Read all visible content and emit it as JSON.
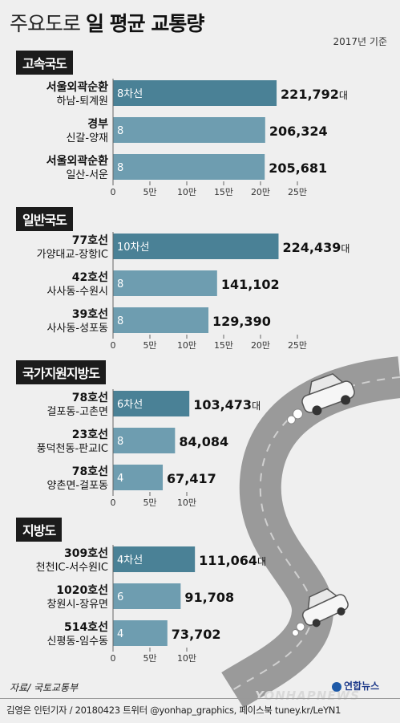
{
  "title": {
    "light": "주요도로",
    "bold": "일 평균 교통량"
  },
  "basis": "2017년 기준",
  "colors": {
    "first": "#4a8196",
    "rest": "#6e9db0",
    "axis": "#666666",
    "road": "#9a9a9a",
    "lane": "#ffffff"
  },
  "chart_data": [
    {
      "type": "bar",
      "orientation": "horizontal",
      "title": "고속국도",
      "categories": [
        [
          "서울외곽순환",
          "하남-퇴계원"
        ],
        [
          "경부",
          "신갈-양재"
        ],
        [
          "서울외곽순환",
          "일산-서운"
        ]
      ],
      "values": [
        221792,
        206324,
        205681
      ],
      "value_labels": [
        "221,792",
        "206,324",
        "205,681"
      ],
      "unit": "대",
      "lanes": [
        "8차선",
        "8",
        "8"
      ],
      "ticks": [
        "0",
        "5만",
        "10만",
        "15만",
        "20만",
        "25만"
      ],
      "xlim": [
        0,
        250000
      ]
    },
    {
      "type": "bar",
      "orientation": "horizontal",
      "title": "일반국도",
      "categories": [
        [
          "77호선",
          "가양대교-장항IC"
        ],
        [
          "42호선",
          "사사동-수원시"
        ],
        [
          "39호선",
          "사사동-성포동"
        ]
      ],
      "values": [
        224439,
        141102,
        129390
      ],
      "value_labels": [
        "224,439",
        "141,102",
        "129,390"
      ],
      "unit": "대",
      "lanes": [
        "10차선",
        "8",
        "8"
      ],
      "ticks": [
        "0",
        "5만",
        "10만",
        "15만",
        "20만",
        "25만"
      ],
      "xlim": [
        0,
        250000
      ]
    },
    {
      "type": "bar",
      "orientation": "horizontal",
      "title": "국가지원지방도",
      "categories": [
        [
          "78호선",
          "걸포동-고촌면"
        ],
        [
          "23호선",
          "풍덕천동-판교IC"
        ],
        [
          "78호선",
          "양촌면-걸포동"
        ]
      ],
      "values": [
        103473,
        84084,
        67417
      ],
      "value_labels": [
        "103,473",
        "84,084",
        "67,417"
      ],
      "unit": "대",
      "lanes": [
        "6차선",
        "8",
        "4"
      ],
      "ticks": [
        "0",
        "5만",
        "10만"
      ],
      "xlim": [
        0,
        100000
      ]
    },
    {
      "type": "bar",
      "orientation": "horizontal",
      "title": "지방도",
      "categories": [
        [
          "309호선",
          "천천IC-서수원IC"
        ],
        [
          "1020호선",
          "창원시-장유면"
        ],
        [
          "514호선",
          "신평동-임수동"
        ]
      ],
      "values": [
        111064,
        91708,
        73702
      ],
      "value_labels": [
        "111,064",
        "91,708",
        "73,702"
      ],
      "unit": "대",
      "lanes": [
        "4차선",
        "6",
        "4"
      ],
      "ticks": [
        "0",
        "5만",
        "10만"
      ],
      "xlim": [
        0,
        100000
      ]
    }
  ],
  "source": "자료/ 국토교통부",
  "credit": "김영은 인턴기자 / 20180423  트위터 @yonhap_graphics, 페이스북 tuney.kr/LeYN1",
  "logo": "연합뉴스",
  "watermark": "YONHAPNEWS"
}
